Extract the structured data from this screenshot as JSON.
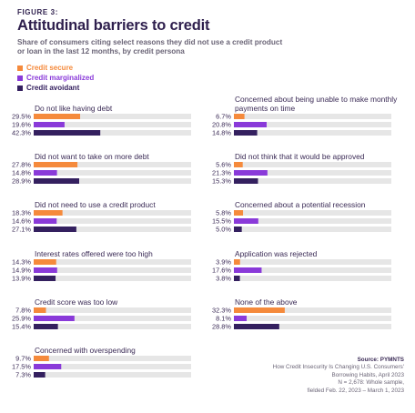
{
  "figure_label": "FIGURE 3:",
  "title": "Attitudinal barriers to credit",
  "subtitle": "Share of consumers citing select reasons they did not use a credit product or loan in the last 12 months, by credit persona",
  "colors": {
    "credit_secure": "#f58a3c",
    "credit_marginalized": "#8a3ad9",
    "credit_avoidant": "#34205f",
    "track": "#e6e6e6"
  },
  "source": {
    "title": "Source: PYMNTS",
    "lines": [
      "How Credit Insecurity Is Changing U.S. Consumers'",
      "Borrowing Habits, April 2023",
      "N = 2,678: Whole sample,",
      "fielded Feb. 22, 2023 – March 1, 2023"
    ]
  },
  "chart_data": {
    "type": "bar",
    "orientation": "horizontal",
    "value_format": "percent",
    "xlim": [
      0,
      100
    ],
    "legend": [
      "Credit secure",
      "Credit marginalized",
      "Credit avoidant"
    ],
    "legend_position": "top-left",
    "panels": [
      {
        "category": "Do not like having debt",
        "labels": [
          "29.5%",
          "19.6%",
          "42.3%"
        ],
        "values": [
          29.5,
          19.6,
          42.3
        ]
      },
      {
        "category": "Did not want to take on more debt",
        "labels": [
          "27.8%",
          "14.8%",
          "28.9%"
        ],
        "values": [
          27.8,
          14.8,
          28.9
        ]
      },
      {
        "category": "Did not need to use a credit product",
        "labels": [
          "18.3%",
          "14.6%",
          "27.1%"
        ],
        "values": [
          18.3,
          14.6,
          27.1
        ]
      },
      {
        "category": "Interest rates offered were too high",
        "labels": [
          "14.3%",
          "14.9%",
          "13.9%"
        ],
        "values": [
          14.3,
          14.9,
          13.9
        ]
      },
      {
        "category": "Credit score was too low",
        "labels": [
          "7.8%",
          "25.9%",
          "15.4%"
        ],
        "values": [
          7.8,
          25.9,
          15.4
        ]
      },
      {
        "category": "Concerned with overspending",
        "labels": [
          "9.7%",
          "17.5%",
          "7.3%"
        ],
        "values": [
          9.7,
          17.5,
          7.3
        ]
      },
      {
        "category": "Concerned about being unable to make monthly payments on time",
        "labels": [
          "6.7%",
          "20.8%",
          "14.8%"
        ],
        "values": [
          6.7,
          20.8,
          14.8
        ]
      },
      {
        "category": "Did not think that it would be approved",
        "labels": [
          "5.6%",
          "21.3%",
          "15.3%"
        ],
        "values": [
          5.6,
          21.3,
          15.3
        ]
      },
      {
        "category": "Concerned about a potential recession",
        "labels": [
          "5.8%",
          "15.5%",
          "5.0%"
        ],
        "values": [
          5.8,
          15.5,
          5.0
        ]
      },
      {
        "category": "Application was rejected",
        "labels": [
          "3.9%",
          "17.6%",
          "3.8%"
        ],
        "values": [
          3.9,
          17.6,
          3.8
        ]
      },
      {
        "category": "None of the above",
        "labels": [
          "32.3%",
          "8.1%",
          "28.8%"
        ],
        "values": [
          32.3,
          8.1,
          28.8
        ]
      }
    ]
  }
}
